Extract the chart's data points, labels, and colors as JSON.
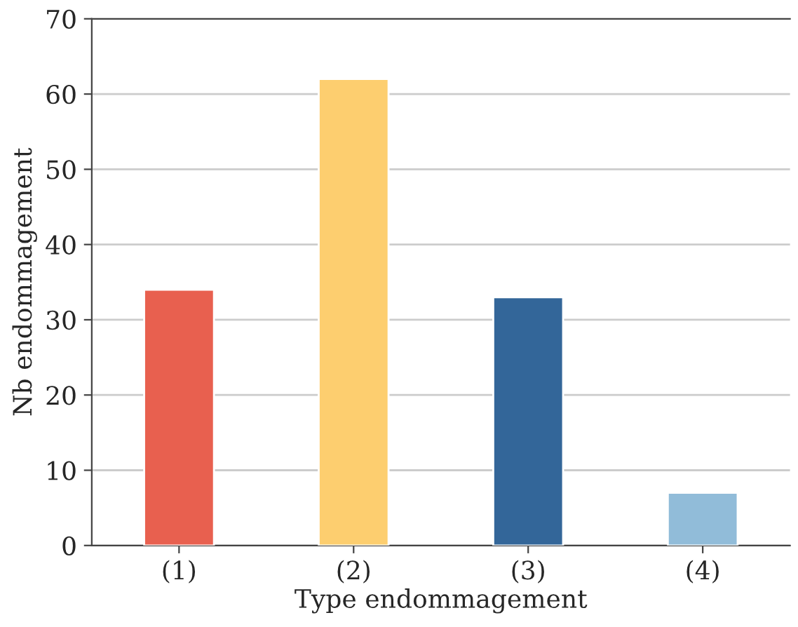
{
  "chart_data": {
    "type": "bar",
    "xlabel": "Type endommagement",
    "ylabel": "Nb endommagement",
    "categories": [
      "(1)",
      "(2)",
      "(3)",
      "(4)"
    ],
    "values": [
      34,
      62,
      33,
      7
    ],
    "colors": [
      "#e8604f",
      "#fdce6f",
      "#336699",
      "#91bcd9"
    ],
    "ylim": [
      0,
      70
    ],
    "yticks": [
      0,
      10,
      20,
      30,
      40,
      50,
      60,
      70
    ],
    "grid": "y",
    "legend": false
  }
}
